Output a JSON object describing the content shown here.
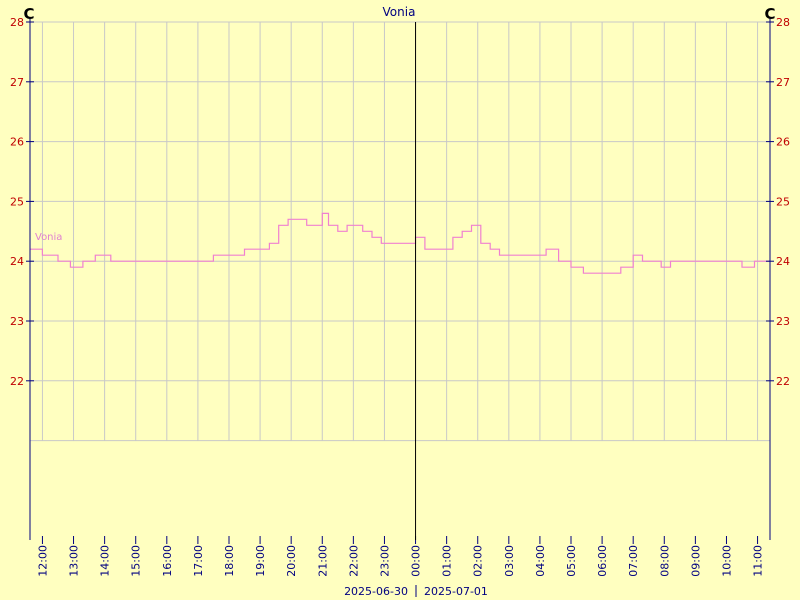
{
  "chart_data": {
    "type": "line",
    "title": "Vonia",
    "unit_left": "C",
    "unit_right": "C",
    "ylim": [
      21,
      28
    ],
    "yticks": [
      22,
      23,
      24,
      25,
      26,
      27,
      28
    ],
    "x_tick_labels": [
      "12:00",
      "13:00",
      "14:00",
      "15:00",
      "16:00",
      "17:00",
      "18:00",
      "19:00",
      "20:00",
      "21:00",
      "22:00",
      "23:00",
      "00:00",
      "01:00",
      "02:00",
      "03:00",
      "04:00",
      "05:00",
      "06:00",
      "07:00",
      "08:00",
      "09:00",
      "10:00",
      "11:00"
    ],
    "x_range_hours": [
      11.6,
      35.4
    ],
    "midnight_hour": 24,
    "date_labels": [
      "2025-06-30",
      "2025-07-01"
    ],
    "grid": true,
    "colors": {
      "background": "#ffffc0",
      "grid": "#c8c8c8",
      "axis": "#000080",
      "series": "#f080d0",
      "ytick": "#c00000",
      "xtick": "#000080",
      "midnight_line": "#000000"
    },
    "series": [
      {
        "name": "Vonia",
        "x": [
          11.6,
          12.0,
          12.5,
          12.9,
          13.3,
          13.7,
          14.2,
          14.7,
          15.3,
          15.9,
          16.5,
          17.0,
          17.5,
          18.0,
          18.5,
          19.0,
          19.3,
          19.6,
          19.9,
          20.2,
          20.5,
          20.8,
          21.0,
          21.2,
          21.5,
          21.8,
          22.0,
          22.3,
          22.6,
          22.9,
          23.2,
          23.5,
          23.8,
          24.0,
          24.3,
          24.6,
          24.9,
          25.2,
          25.5,
          25.8,
          26.1,
          26.4,
          26.7,
          27.0,
          27.4,
          27.8,
          28.2,
          28.6,
          29.0,
          29.4,
          29.8,
          30.2,
          30.6,
          31.0,
          31.3,
          31.6,
          31.9,
          32.2,
          32.5,
          32.9,
          33.3,
          33.7,
          34.1,
          34.5,
          34.9,
          35.2,
          35.4
        ],
        "y": [
          24.2,
          24.1,
          24.0,
          23.9,
          24.0,
          24.1,
          24.0,
          24.0,
          24.0,
          24.0,
          24.0,
          24.0,
          24.1,
          24.1,
          24.2,
          24.2,
          24.3,
          24.6,
          24.7,
          24.7,
          24.6,
          24.6,
          24.8,
          24.6,
          24.5,
          24.6,
          24.6,
          24.5,
          24.4,
          24.3,
          24.3,
          24.3,
          24.3,
          24.4,
          24.2,
          24.2,
          24.2,
          24.4,
          24.5,
          24.6,
          24.3,
          24.2,
          24.1,
          24.1,
          24.1,
          24.1,
          24.2,
          24.0,
          23.9,
          23.8,
          23.8,
          23.8,
          23.9,
          24.1,
          24.0,
          24.0,
          23.9,
          24.0,
          24.0,
          24.0,
          24.0,
          24.0,
          24.0,
          23.9,
          24.0,
          24.0,
          24.0
        ]
      }
    ]
  }
}
